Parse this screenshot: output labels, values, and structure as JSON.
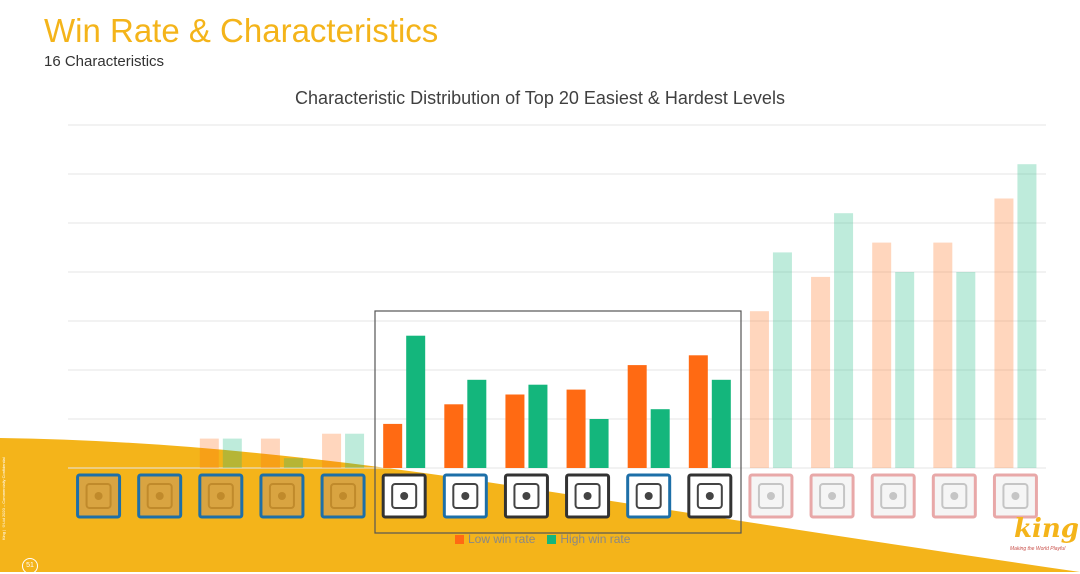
{
  "slide": {
    "title": "Win Rate & Characteristics",
    "subtitle": "16 Characteristics",
    "page_number": "51",
    "side_note": "King | ©Ltd 2020 – Commercially Confidential",
    "brand_logo": "king",
    "brand_tagline": "Making the World Playful"
  },
  "colors": {
    "accent": "#f4b41a",
    "low": "#ff6a13",
    "high": "#14b67c"
  },
  "chart_data": {
    "type": "bar",
    "title": "Characteristic Distribution of Top 20 Easiest & Hardest Levels",
    "xlabel": "",
    "ylabel": "",
    "ylim": [
      0,
      7
    ],
    "grid": true,
    "legend_placement": "bottom",
    "highlighted_categories": [
      5,
      6,
      7,
      8,
      9,
      10
    ],
    "categories": [
      "caramel-block-icon",
      "cookie-block-icon",
      "waffle-grid-icon",
      "wrapped-candy-icon",
      "candy-swirl-icon",
      "conveyor-icon",
      "lock-icon",
      "jar-icon",
      "chain-link-icon",
      "cannon-icon",
      "stacked-tiles-icon",
      "layered-squares-icon",
      "frame-tile-icon",
      "grey-block-icon",
      "portal-icon",
      "snowflake-tile-icon"
    ],
    "series": [
      {
        "name": "Low win rate",
        "values": [
          0,
          0,
          0.6,
          0.6,
          0.7,
          0.9,
          1.3,
          1.5,
          1.6,
          2.1,
          2.3,
          3.2,
          3.9,
          4.6,
          4.6,
          5.5
        ]
      },
      {
        "name": "High win rate",
        "values": [
          0,
          0,
          0.6,
          0.2,
          0.7,
          2.7,
          1.8,
          1.7,
          1.0,
          1.2,
          1.8,
          4.4,
          5.2,
          4.0,
          4.0,
          6.2
        ]
      }
    ]
  }
}
